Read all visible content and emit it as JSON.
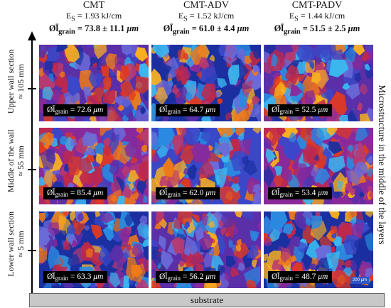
{
  "columns": [
    {
      "name": "CMT",
      "energy": "E",
      "energy_sub": "S",
      "energy_value": " = 1.93 kJ/cm",
      "mean_value": " = 73.8 ± 11.1 ",
      "unit": "μm"
    },
    {
      "name": "CMT-ADV",
      "energy": "E",
      "energy_sub": "S",
      "energy_value": " = 1.52 kJ/cm",
      "mean_value": " = 61.0 ± 4.4 ",
      "unit": "μm"
    },
    {
      "name": "CMT-PADV",
      "energy": "E",
      "energy_sub": "S",
      "energy_value": " = 1.44 kJ/cm",
      "mean_value": " = 51.5 ± 2.5 ",
      "unit": "μm"
    }
  ],
  "grain_symbol": "Øl̄",
  "grain_sub": "grain",
  "rows": [
    {
      "line1": "Upper wall section",
      "line2": "≈ 105 mm"
    },
    {
      "line1": "Middle of the wall",
      "line2": "≈ 55 mm"
    },
    {
      "line1": "Lower wall section",
      "line2": "≈ 5 mm"
    }
  ],
  "cells": [
    [
      {
        "value": " = 72.6 "
      },
      {
        "value": " = 64.7 "
      },
      {
        "value": " = 52.5 "
      }
    ],
    [
      {
        "value": " = 85.4 "
      },
      {
        "value": " = 62.0 "
      },
      {
        "value": " = 53.4 "
      }
    ],
    [
      {
        "value": " = 63.3 "
      },
      {
        "value": " = 56.2 "
      },
      {
        "value": " = 48.7 "
      }
    ]
  ],
  "unit": "μm",
  "scale_bar": "200 μm",
  "side_label": "Microstructure in the middle of the layers",
  "substrate_label": "substrate",
  "palette": [
    "#1b2fa0",
    "#3a48c8",
    "#5a2fa8",
    "#8a2a9a",
    "#c0284a",
    "#e03a20",
    "#f07a18",
    "#f8b020",
    "#2a8ae0",
    "#3ab8f0",
    "#6a6ad8",
    "#b83a70"
  ]
}
